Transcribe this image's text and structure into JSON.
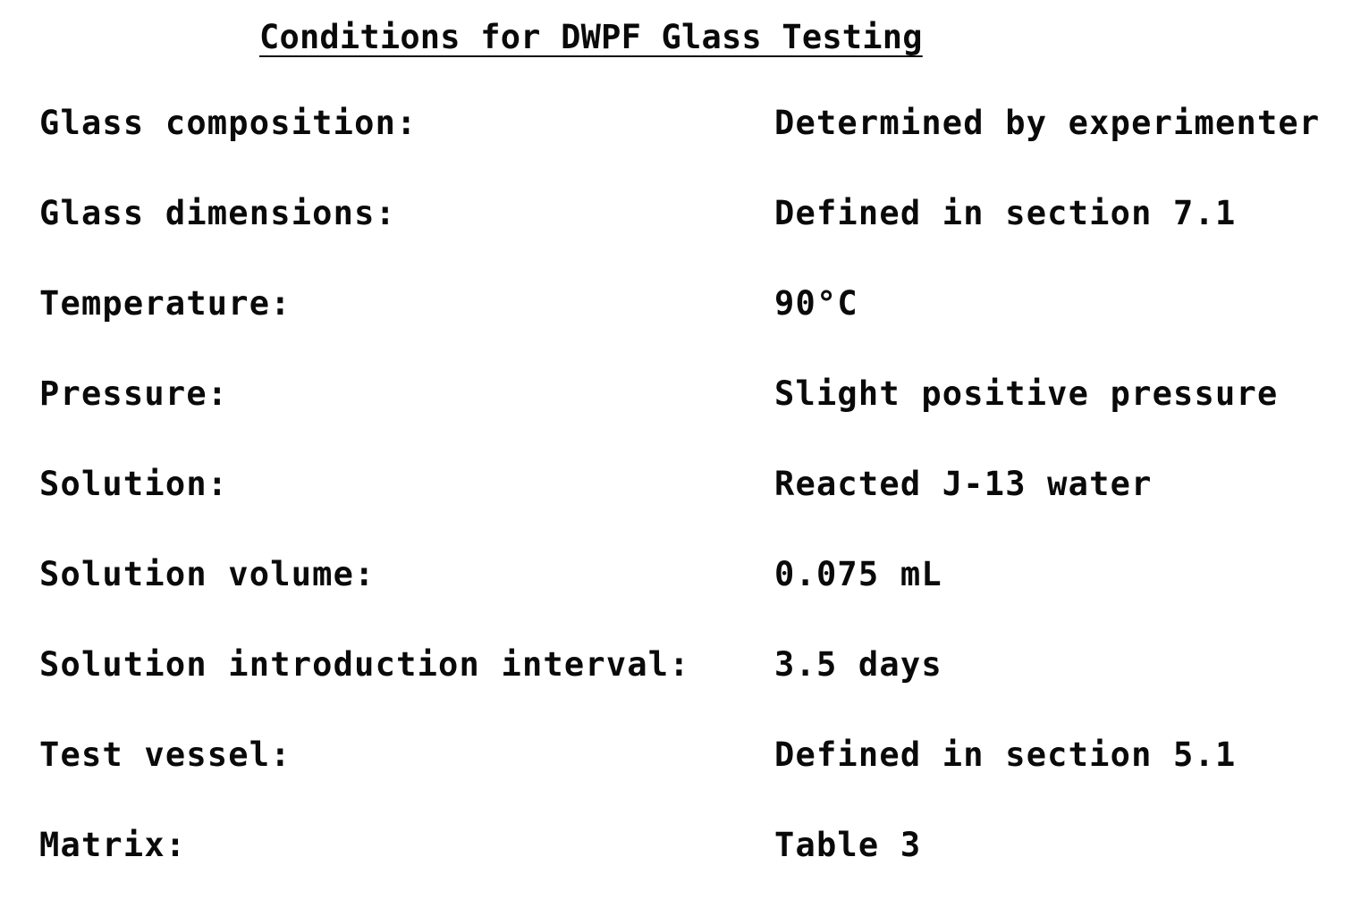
{
  "document": {
    "title": "Conditions for DWPF Glass Testing",
    "rows": [
      {
        "label": "Glass composition:",
        "value": "Determined by experimenter"
      },
      {
        "label": "Glass dimensions:",
        "value": "Defined in section 7.1"
      },
      {
        "label": "Temperature:",
        "value": "90°C"
      },
      {
        "label": "Pressure:",
        "value": "Slight positive pressure"
      },
      {
        "label": "Solution:",
        "value": "Reacted J-13 water"
      },
      {
        "label": "Solution volume:",
        "value": "0.075 mL"
      },
      {
        "label": "Solution introduction interval:",
        "value": "3.5 days"
      },
      {
        "label": "Test vessel:",
        "value": "Defined in section 5.1"
      },
      {
        "label": "Matrix:",
        "value": "Table 3"
      }
    ]
  }
}
